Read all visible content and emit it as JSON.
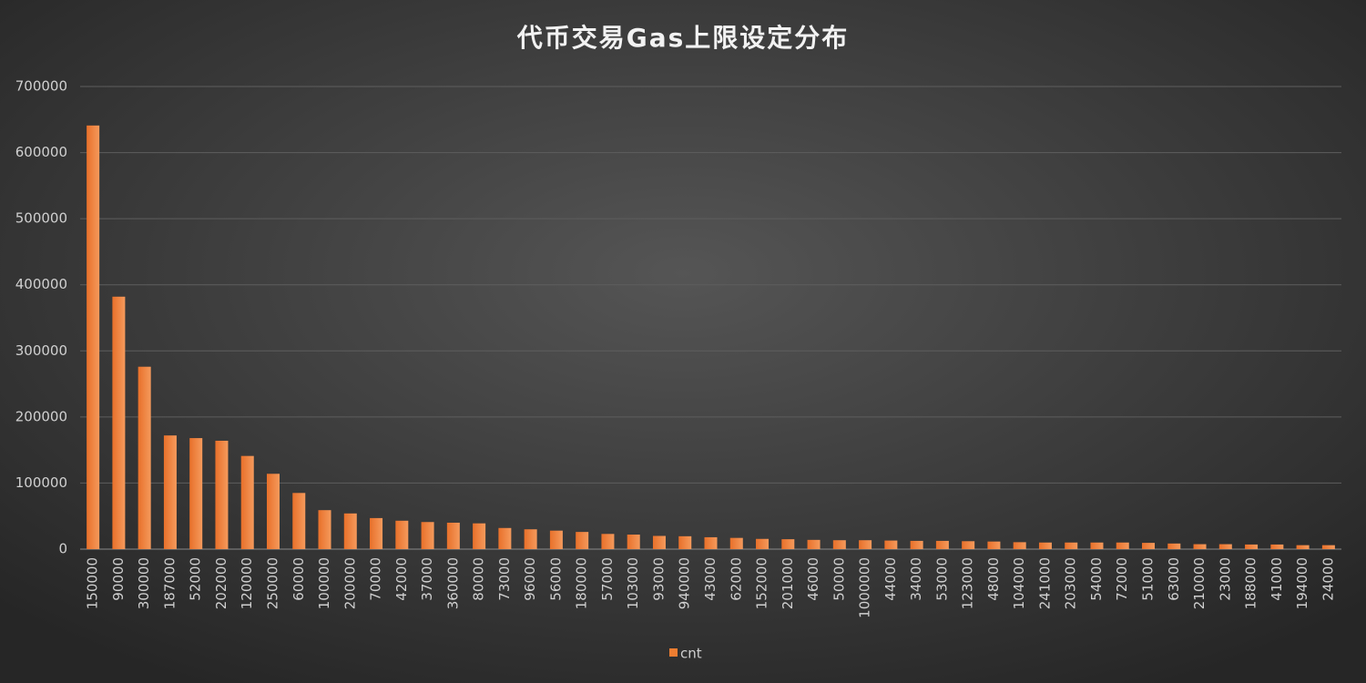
{
  "chart_data": {
    "type": "bar",
    "title": "代币交易Gas上限设定分布",
    "categories": [
      "150000",
      "90000",
      "300000",
      "187000",
      "52000",
      "202000",
      "120000",
      "250000",
      "60000",
      "100000",
      "200000",
      "70000",
      "42000",
      "37000",
      "360000",
      "80000",
      "73000",
      "96000",
      "56000",
      "180000",
      "57000",
      "103000",
      "93000",
      "940000",
      "43000",
      "62000",
      "152000",
      "201000",
      "46000",
      "50000",
      "1000000",
      "44000",
      "34000",
      "53000",
      "123000",
      "48000",
      "104000",
      "241000",
      "203000",
      "54000",
      "72000",
      "51000",
      "63000",
      "210000",
      "23000",
      "188000",
      "41000",
      "194000",
      "24000"
    ],
    "series": [
      {
        "name": "cnt",
        "color": "#ed7d31",
        "values": [
          641000,
          382000,
          276000,
          172000,
          168000,
          164000,
          141000,
          114000,
          85000,
          59000,
          54000,
          47000,
          43000,
          41000,
          40000,
          39000,
          32000,
          30000,
          28000,
          26000,
          23000,
          22000,
          20000,
          19500,
          18000,
          17000,
          15500,
          15000,
          14000,
          13500,
          13500,
          13000,
          12500,
          12500,
          12000,
          11500,
          10500,
          10000,
          10000,
          10000,
          10000,
          9500,
          8500,
          7500,
          7500,
          7000,
          7000,
          6000,
          6000
        ]
      }
    ],
    "ylim": [
      0,
      700000
    ],
    "yticks": [
      0,
      100000,
      200000,
      300000,
      400000,
      500000,
      600000,
      700000
    ],
    "grid": true,
    "legend": "bottom"
  }
}
